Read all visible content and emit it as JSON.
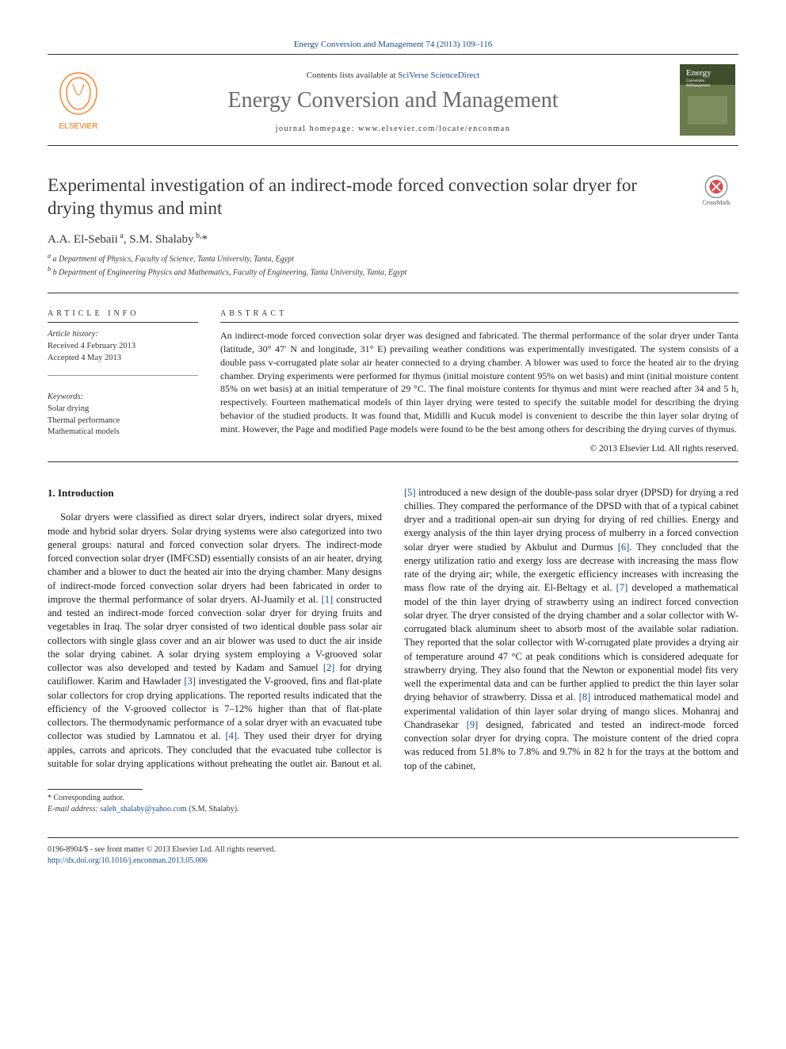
{
  "journal": {
    "header_ref": "Energy Conversion and Management 74 (2013) 109–116",
    "contents_prefix": "Contents lists available at ",
    "contents_link": "SciVerse ScienceDirect",
    "name": "Energy Conversion and Management",
    "homepage_prefix": "journal homepage: ",
    "homepage": "www.elsevier.com/locate/enconman",
    "publisher_name": "ELSEVIER",
    "cover_title_top": "Energy",
    "cover_title_bottom": "Conversion\n& Management"
  },
  "crossmark_label": "CrossMark",
  "article": {
    "title": "Experimental investigation of an indirect-mode forced convection solar dryer for drying thymus and mint",
    "authors_html": "A.A. El-Sebaii <sup>a</sup>, S.M. Shalaby <sup>b,</sup>",
    "corresponding_marker": "*",
    "affiliations": [
      "a Department of Physics, Faculty of Science, Tanta University, Tanta, Egypt",
      "b Department of Engineering Physics and Mathematics, Faculty of Engineering, Tanta University, Tanta, Egypt"
    ]
  },
  "info": {
    "section_label": "ARTICLE INFO",
    "history_label": "Article history:",
    "received": "Received 4 February 2013",
    "accepted": "Accepted 4 May 2013",
    "keywords_label": "Keywords:",
    "keywords": [
      "Solar drying",
      "Thermal performance",
      "Mathematical models"
    ]
  },
  "abstract": {
    "section_label": "ABSTRACT",
    "text": "An indirect-mode forced convection solar dryer was designed and fabricated. The thermal performance of the solar dryer under Tanta (latitude, 30° 47′ N and longitude, 31° E) prevailing weather conditions was experimentally investigated. The system consists of a double pass v-corrugated plate solar air heater connected to a drying chamber. A blower was used to force the heated air to the drying chamber. Drying experiments were performed for thymus (initial moisture content 95% on wet basis) and mint (initial moisture content 85% on wet basis) at an initial temperature of 29 °C. The final moisture contents for thymus and mint were reached after 34 and 5 h, respectively. Fourteen mathematical models of thin layer drying were tested to specify the suitable model for describing the drying behavior of the studied products. It was found that, Midilli and Kucuk model is convenient to describe the thin layer solar drying of mint. However, the Page and modified Page models were found to be the best among others for describing the drying curves of thymus.",
    "copyright": "© 2013 Elsevier Ltd. All rights reserved."
  },
  "body": {
    "heading": "1. Introduction",
    "paragraph": "Solar dryers were classified as direct solar dryers, indirect solar dryers, mixed mode and hybrid solar dryers. Solar drying systems were also categorized into two general groups: natural and forced convection solar dryers. The indirect-mode forced convection solar dryer (IMFCSD) essentially consists of an air heater, drying chamber and a blower to duct the heated air into the drying chamber. Many designs of indirect-mode forced convection solar dryers had been fabricated in order to improve the thermal performance of solar dryers. Al-Juamily et al. [1] constructed and tested an indirect-mode forced convection solar dryer for drying fruits and vegetables in Iraq. The solar dryer consisted of two identical double pass solar air collectors with single glass cover and an air blower was used to duct the air inside the solar drying cabinet. A solar drying system employing a V-grooved solar collector was also developed and tested by Kadam and Samuel [2] for drying cauliflower. Karim and Hawlader [3] investigated the V-grooved, fins and flat-plate solar collectors for crop drying applications. The reported results indicated that the efficiency of the V-grooved collector is 7–12% higher than that of flat-plate collectors. The thermodynamic performance of a solar dryer with an evacuated tube collector was studied by Lamnatou et al. [4]. They used their dryer for drying apples, carrots and apricots. They concluded that the evacuated tube collector is suitable for solar drying applications without preheating the outlet air. Banout et al. [5] introduced a new design of the double-pass solar dryer (DPSD) for drying a red chillies. They compared the performance of the DPSD with that of a typical cabinet dryer and a traditional open-air sun drying for drying of red chillies. Energy and exergy analysis of the thin layer drying process of mulberry in a forced convection solar dryer were studied by Akbulut and Durmus [6]. They concluded that the energy utilization ratio and exergy loss are decrease with increasing the mass flow rate of the drying air; while, the exergetic efficiency increases with increasing the mass flow rate of the drying air. El-Beltagy et al. [7] developed a mathematical model of the thin layer drying of strawberry using an indirect forced convection solar dryer. The dryer consisted of the drying chamber and a solar collector with W-corrugated black aluminum sheet to absorb most of the available solar radiation. They reported that the solar collector with W-corrugated plate provides a drying air of temperature around 47 °C at peak conditions which is considered adequate for strawberry drying. They also found that the Newton or exponential model fits very well the experimental data and can be further applied to predict the thin layer solar drying behavior of strawberry. Dissa et al. [8] introduced mathematical model and experimental validation of thin layer solar drying of mango slices. Mohanraj and Chandrasekar [9] designed, fabricated and tested an indirect-mode forced convection solar dryer for drying copra. The moisture content of the dried copra was reduced from 51.8% to 7.8% and 9.7% in 82 h for the trays at the bottom and top of the cabinet,",
    "ref_markers": [
      "[1]",
      "[2]",
      "[3]",
      "[4]",
      "[5]",
      "[6]",
      "[7]",
      "[8]",
      "[9]"
    ]
  },
  "footer": {
    "corresponding": "* Corresponding author.",
    "email_label": "E-mail address: ",
    "email": "saleh_shalaby@yahoo.com",
    "email_suffix": " (S.M. Shalaby).",
    "front_matter": "0196-8904/$ - see front matter © 2013 Elsevier Ltd. All rights reserved.",
    "doi": "http://dx.doi.org/10.1016/j.enconman.2013.05.006"
  },
  "colors": {
    "link": "#1a4b8c",
    "journal_name": "#6a6a6a",
    "elsevier_orange": "#ff6a00",
    "cover_bg1": "#414e2e",
    "cover_bg2": "#6a7a4a"
  }
}
